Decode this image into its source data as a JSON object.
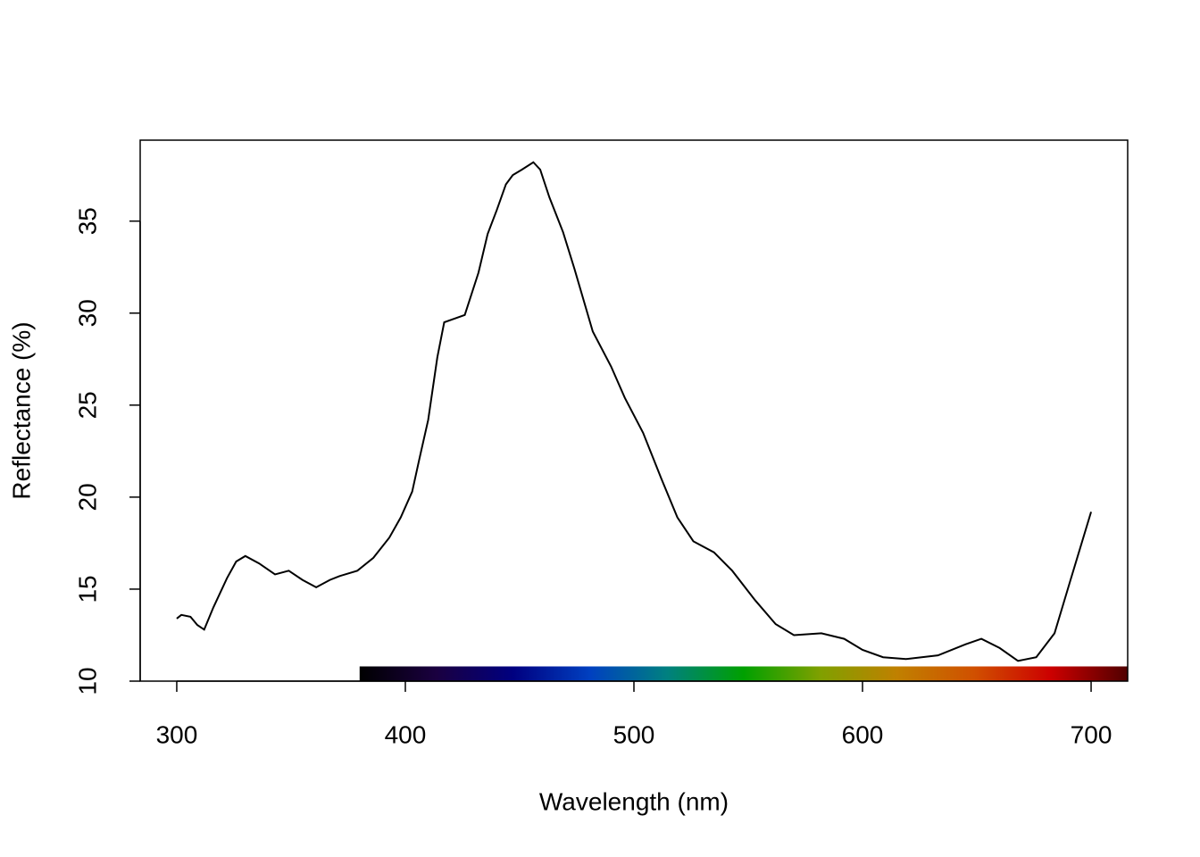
{
  "chart_data": {
    "type": "line",
    "x_label": "Wavelength (nm)",
    "y_label": "Reflectance (%)",
    "x": [
      300,
      302,
      306,
      309,
      312,
      316,
      322,
      326,
      330,
      336,
      343,
      349,
      355,
      361,
      367,
      371,
      379,
      386,
      393,
      398,
      403,
      406,
      410,
      414,
      417,
      426,
      432,
      436,
      440,
      444,
      447,
      451,
      456,
      459,
      463,
      469,
      474,
      482,
      490,
      496,
      504,
      512,
      519,
      526,
      535,
      543,
      553,
      562,
      570,
      582,
      592,
      600,
      609,
      619,
      633,
      645,
      652,
      660,
      668,
      676,
      684,
      691,
      700
    ],
    "series": [
      {
        "color": "#000000",
        "values": [
          13.4,
          13.6,
          13.5,
          13.05,
          12.8,
          14.0,
          15.6,
          16.5,
          16.8,
          16.4,
          15.8,
          16.0,
          15.5,
          15.1,
          15.5,
          15.7,
          16.0,
          16.7,
          17.8,
          18.9,
          20.3,
          22.0,
          24.2,
          27.6,
          29.5,
          29.9,
          32.2,
          34.3,
          35.6,
          37.0,
          37.5,
          37.8,
          38.2,
          37.8,
          36.3,
          34.4,
          32.4,
          29.0,
          27.1,
          25.4,
          23.5,
          21.0,
          18.9,
          17.6,
          17.0,
          16.0,
          14.4,
          13.1,
          12.5,
          12.6,
          12.3,
          11.7,
          11.3,
          11.2,
          11.4,
          12.0,
          12.3,
          11.8,
          11.1,
          11.3,
          12.6,
          15.5,
          19.2
        ]
      }
    ],
    "xlim": [
      284,
      716
    ],
    "ylim": [
      10,
      39.4
    ],
    "xticks": [
      300,
      400,
      500,
      600,
      700
    ],
    "yticks": [
      10,
      15,
      20,
      25,
      30,
      35
    ],
    "spectrum": {
      "range": [
        380,
        716
      ],
      "height": [
        10,
        10.8
      ],
      "colors": [
        "#000000",
        "#1a0040",
        "#000080",
        "#0040c0",
        "#008080",
        "#00a000",
        "#80a000",
        "#c08000",
        "#d05000",
        "#cc0000",
        "#500000"
      ]
    }
  }
}
